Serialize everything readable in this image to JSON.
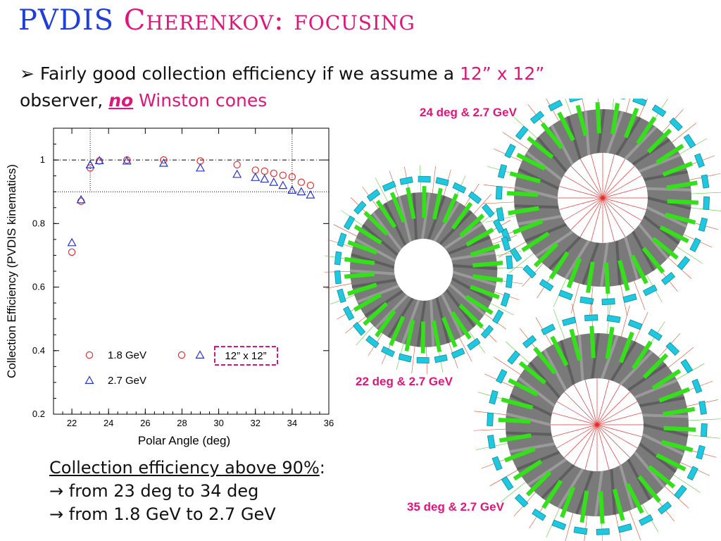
{
  "title": {
    "part1": "PVDIS",
    "part2": "Cherenkov: focusing"
  },
  "bullet": {
    "arrow": "➢",
    "text1": "Fairly good collection efficiency if we assume a",
    "size": "12” x 12”",
    "text2": "observer,",
    "no": "no",
    "winston": "Winston cones"
  },
  "labels": {
    "view24": "24 deg & 2.7 GeV",
    "view22": "22 deg & 2.7 GeV",
    "view35": "35 deg & 2.7 GeV"
  },
  "summary": {
    "head": "Collection efficiency above 90%",
    "colon": ":",
    "line1": "→ from 23 deg to 34 deg",
    "line2": "→ from 1.8 GeV to 2.7 GeV"
  },
  "colors": {
    "pink": "#e0157a",
    "blue": "#1f3fd8",
    "green": "#33e01a",
    "cyan": "#1fc8de",
    "gray": "#7a7a7a"
  },
  "chart_data": {
    "type": "scatter",
    "xlabel": "Polar Angle (deg)",
    "ylabel": "Collection Efficiency (PVDIS kinematics)",
    "xlim": [
      21,
      36
    ],
    "ylim": [
      0.2,
      1.1
    ],
    "xticks": [
      "22",
      "24",
      "26",
      "28",
      "30",
      "32",
      "34",
      "36"
    ],
    "yticks": [
      "0.2",
      "0.4",
      "0.6",
      "0.8",
      "1"
    ],
    "reference_lines": {
      "y": [
        1.0,
        0.9
      ],
      "x": [
        23,
        34
      ]
    },
    "series": [
      {
        "name": "1.8 GeV",
        "marker": "circle",
        "color": "#e23030",
        "x": [
          22,
          22.5,
          23,
          23.5,
          25,
          27,
          29,
          31,
          32,
          32.5,
          33,
          33.5,
          34,
          34.5,
          35
        ],
        "y": [
          0.71,
          0.87,
          0.975,
          0.997,
          1.0,
          1.0,
          0.997,
          0.985,
          0.968,
          0.965,
          0.958,
          0.952,
          0.947,
          0.93,
          0.92
        ]
      },
      {
        "name": "2.7 GeV",
        "marker": "triangle",
        "color": "#2535d0",
        "x": [
          22,
          22.5,
          23,
          23.5,
          25,
          27,
          29,
          31,
          32,
          32.5,
          33,
          33.5,
          34,
          34.5,
          35
        ],
        "y": [
          0.74,
          0.875,
          0.985,
          0.998,
          0.997,
          0.99,
          0.975,
          0.955,
          0.945,
          0.94,
          0.93,
          0.92,
          0.905,
          0.9,
          0.89
        ]
      }
    ],
    "legend_note": "12” x 12”"
  }
}
